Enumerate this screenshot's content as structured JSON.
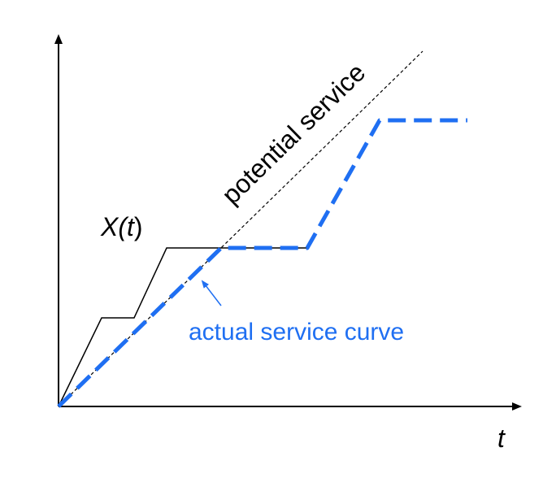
{
  "labels": {
    "x_axis": "t",
    "arrival_prefix": "X(",
    "arrival_var": "t",
    "arrival_suffix": ")",
    "potential": "potential service",
    "actual": "actual service curve"
  },
  "colors": {
    "axis": "#000000",
    "arrival": "#000000",
    "potential": "#000000",
    "actual": "#1f6ff2",
    "actual_label": "#1f6ff2"
  }
}
